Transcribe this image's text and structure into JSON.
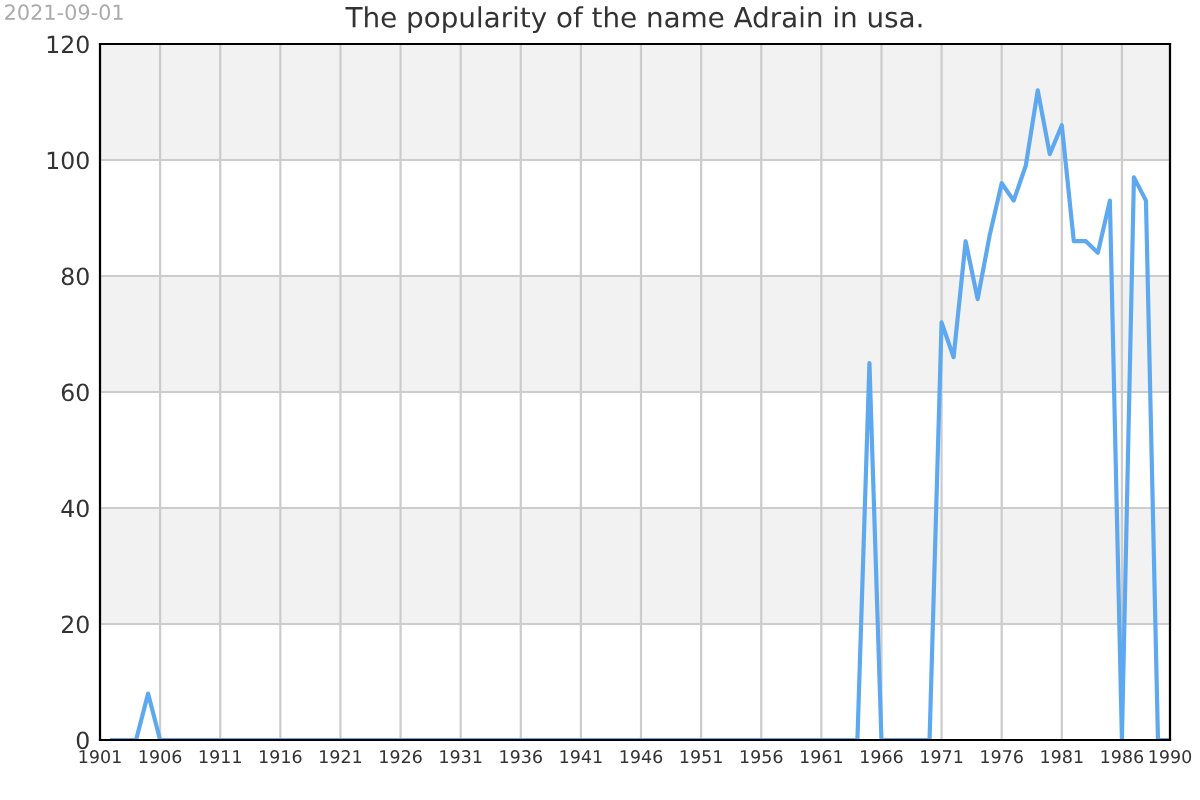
{
  "chart_data": {
    "type": "line",
    "title": "The popularity of the name Adrain in usa.",
    "x": [
      1902,
      1903,
      1904,
      1905,
      1906,
      1907,
      1908,
      1909,
      1910,
      1911,
      1912,
      1913,
      1914,
      1915,
      1916,
      1917,
      1918,
      1919,
      1920,
      1921,
      1922,
      1923,
      1924,
      1925,
      1926,
      1927,
      1928,
      1929,
      1930,
      1931,
      1932,
      1933,
      1934,
      1935,
      1936,
      1937,
      1938,
      1939,
      1940,
      1941,
      1942,
      1943,
      1944,
      1945,
      1946,
      1947,
      1948,
      1949,
      1950,
      1951,
      1952,
      1953,
      1954,
      1955,
      1956,
      1957,
      1958,
      1959,
      1960,
      1961,
      1962,
      1963,
      1964,
      1965,
      1966,
      1967,
      1968,
      1969,
      1970,
      1971,
      1972,
      1973,
      1974,
      1975,
      1976,
      1977,
      1978,
      1979,
      1980,
      1981,
      1982,
      1983,
      1984,
      1985,
      1986,
      1987,
      1988,
      1989,
      1990
    ],
    "series": [
      {
        "color": "#5ea8f0",
        "values": [
          0,
          0,
          0,
          8,
          0,
          0,
          0,
          0,
          0,
          0,
          0,
          0,
          0,
          0,
          0,
          0,
          0,
          0,
          0,
          0,
          0,
          0,
          0,
          0,
          0,
          0,
          0,
          0,
          0,
          0,
          0,
          0,
          0,
          0,
          0,
          0,
          0,
          0,
          0,
          0,
          0,
          0,
          0,
          0,
          0,
          0,
          0,
          0,
          0,
          0,
          0,
          0,
          0,
          0,
          0,
          0,
          0,
          0,
          0,
          0,
          0,
          0,
          0,
          65,
          0,
          0,
          0,
          0,
          0,
          72,
          66,
          86,
          76,
          87,
          96,
          93,
          99,
          112,
          101,
          106,
          86,
          86,
          84,
          93,
          0,
          97,
          93,
          0,
          0
        ]
      }
    ],
    "xlim": [
      1901,
      1990
    ],
    "xticks": [
      1901,
      1906,
      1911,
      1916,
      1921,
      1926,
      1931,
      1936,
      1941,
      1946,
      1951,
      1956,
      1961,
      1966,
      1971,
      1976,
      1981,
      1986,
      1990
    ],
    "ylim": [
      0,
      120
    ],
    "yticks": [
      0,
      20,
      40,
      60,
      80,
      100,
      120
    ],
    "bands": [
      {
        "axis": "y",
        "from": 20,
        "to": 40,
        "color": "#f2f2f2"
      },
      {
        "axis": "y",
        "from": 60,
        "to": 80,
        "color": "#f2f2f2"
      },
      {
        "axis": "y",
        "from": 100,
        "to": 120,
        "color": "#f2f2f2"
      }
    ],
    "grid": true,
    "legend": false,
    "annotations": [
      "2021-09-01"
    ]
  }
}
